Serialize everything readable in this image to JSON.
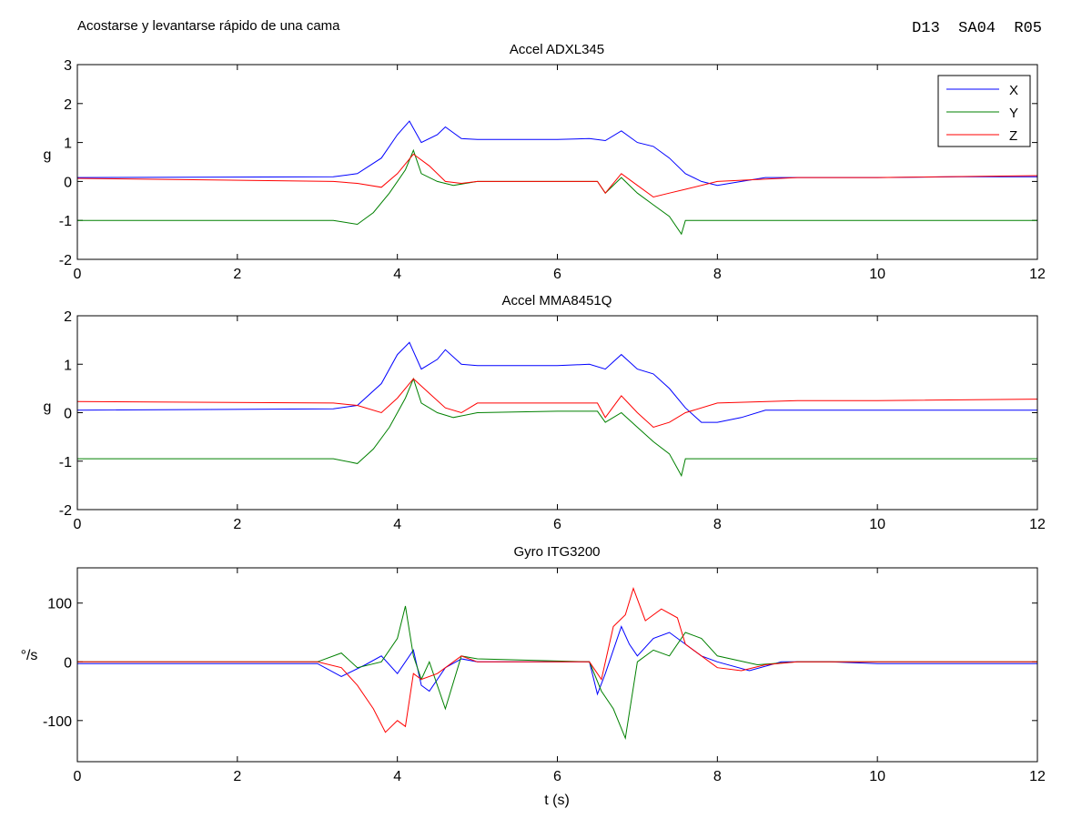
{
  "figure": {
    "title": "Acostarse y levantarse rápido de una cama",
    "code": "D13  SA04  R05"
  },
  "chart_data": [
    {
      "type": "line",
      "title": "Accel ADXL345",
      "xlabel": "",
      "ylabel": "g",
      "xlim": [
        0,
        12
      ],
      "ylim": [
        -2,
        3
      ],
      "xticks": [
        0,
        2,
        4,
        6,
        8,
        10,
        12
      ],
      "yticks": [
        -2,
        -1,
        0,
        1,
        2,
        3
      ],
      "legend": {
        "placement": "top-right",
        "entries": [
          "X",
          "Y",
          "Z"
        ]
      },
      "series": [
        {
          "name": "X",
          "color": "#0000ff",
          "x": [
            0,
            3.2,
            3.5,
            3.8,
            4.0,
            4.15,
            4.3,
            4.5,
            4.6,
            4.8,
            5,
            6,
            6.4,
            6.6,
            6.8,
            7.0,
            7.2,
            7.4,
            7.6,
            7.8,
            8.0,
            8.3,
            8.6,
            9,
            10,
            11,
            12
          ],
          "y": [
            0.1,
            0.12,
            0.2,
            0.6,
            1.2,
            1.55,
            1.0,
            1.2,
            1.4,
            1.1,
            1.08,
            1.08,
            1.1,
            1.05,
            1.3,
            1.0,
            0.9,
            0.6,
            0.2,
            0.0,
            -0.1,
            0.0,
            0.1,
            0.1,
            0.1,
            0.12,
            0.12
          ]
        },
        {
          "name": "Y",
          "color": "#008000",
          "x": [
            0,
            3.2,
            3.5,
            3.7,
            3.9,
            4.1,
            4.2,
            4.3,
            4.5,
            4.7,
            5,
            6,
            6.5,
            6.6,
            6.8,
            7.0,
            7.2,
            7.4,
            7.55,
            7.6,
            7.8,
            8,
            10,
            12
          ],
          "y": [
            -1.0,
            -1.0,
            -1.1,
            -0.8,
            -0.3,
            0.3,
            0.8,
            0.2,
            0.0,
            -0.1,
            0.0,
            0.0,
            0.0,
            -0.3,
            0.1,
            -0.3,
            -0.6,
            -0.9,
            -1.35,
            -1.0,
            -1.0,
            -1.0,
            -1.0,
            -1.0
          ]
        },
        {
          "name": "Z",
          "color": "#ff0000",
          "x": [
            0,
            3.2,
            3.5,
            3.8,
            4.0,
            4.2,
            4.4,
            4.6,
            4.8,
            5,
            6,
            6.5,
            6.6,
            6.8,
            7.0,
            7.2,
            7.4,
            7.6,
            8,
            9,
            10,
            12
          ],
          "y": [
            0.08,
            0.0,
            -0.05,
            -0.15,
            0.2,
            0.7,
            0.4,
            0.0,
            -0.05,
            0.0,
            0.0,
            0.0,
            -0.3,
            0.2,
            -0.1,
            -0.4,
            -0.3,
            -0.2,
            0.0,
            0.1,
            0.1,
            0.15
          ]
        }
      ]
    },
    {
      "type": "line",
      "title": "Accel MMA8451Q",
      "xlabel": "",
      "ylabel": "g",
      "xlim": [
        0,
        12
      ],
      "ylim": [
        -2,
        2
      ],
      "xticks": [
        0,
        2,
        4,
        6,
        8,
        10,
        12
      ],
      "yticks": [
        -2,
        -1,
        0,
        1,
        2
      ],
      "series": [
        {
          "name": "X",
          "color": "#0000ff",
          "x": [
            0,
            3.2,
            3.5,
            3.8,
            4.0,
            4.15,
            4.3,
            4.5,
            4.6,
            4.8,
            5,
            6,
            6.4,
            6.6,
            6.8,
            7.0,
            7.2,
            7.4,
            7.6,
            7.8,
            8.0,
            8.3,
            8.6,
            9,
            10,
            11,
            12
          ],
          "y": [
            0.05,
            0.08,
            0.15,
            0.6,
            1.2,
            1.45,
            0.9,
            1.1,
            1.3,
            1.0,
            0.97,
            0.97,
            1.0,
            0.9,
            1.2,
            0.9,
            0.8,
            0.5,
            0.1,
            -0.2,
            -0.2,
            -0.1,
            0.05,
            0.05,
            0.05,
            0.05,
            0.05
          ]
        },
        {
          "name": "Y",
          "color": "#008000",
          "x": [
            0,
            3.2,
            3.5,
            3.7,
            3.9,
            4.1,
            4.2,
            4.3,
            4.5,
            4.7,
            5,
            6,
            6.5,
            6.6,
            6.8,
            7.0,
            7.2,
            7.4,
            7.55,
            7.6,
            7.8,
            8,
            10,
            12
          ],
          "y": [
            -0.95,
            -0.95,
            -1.05,
            -0.75,
            -0.3,
            0.3,
            0.7,
            0.2,
            0.0,
            -0.1,
            0.0,
            0.03,
            0.03,
            -0.2,
            0.0,
            -0.3,
            -0.6,
            -0.85,
            -1.3,
            -0.95,
            -0.95,
            -0.95,
            -0.95,
            -0.95
          ]
        },
        {
          "name": "Z",
          "color": "#ff0000",
          "x": [
            0,
            3.2,
            3.5,
            3.8,
            4.0,
            4.2,
            4.4,
            4.6,
            4.8,
            5,
            6,
            6.5,
            6.6,
            6.8,
            7.0,
            7.2,
            7.4,
            7.6,
            8,
            9,
            10,
            12
          ],
          "y": [
            0.23,
            0.2,
            0.15,
            0.0,
            0.3,
            0.7,
            0.4,
            0.1,
            0.0,
            0.2,
            0.2,
            0.2,
            -0.1,
            0.35,
            0.0,
            -0.3,
            -0.2,
            0.0,
            0.2,
            0.25,
            0.25,
            0.28
          ]
        }
      ]
    },
    {
      "type": "line",
      "title": "Gyro ITG3200",
      "xlabel": "t (s)",
      "ylabel": "°/s",
      "xlim": [
        0,
        12
      ],
      "ylim": [
        -170,
        160
      ],
      "xticks": [
        0,
        2,
        4,
        6,
        8,
        10,
        12
      ],
      "yticks": [
        -100,
        0,
        100
      ],
      "series": [
        {
          "name": "X",
          "color": "#0000ff",
          "x": [
            0,
            3.0,
            3.3,
            3.6,
            3.8,
            4.0,
            4.2,
            4.3,
            4.4,
            4.6,
            4.8,
            5.0,
            6.4,
            6.5,
            6.6,
            6.8,
            6.9,
            7.0,
            7.2,
            7.4,
            7.6,
            7.8,
            8,
            8.4,
            8.8,
            9.4,
            10,
            12
          ],
          "y": [
            -3,
            -3,
            -25,
            -5,
            10,
            -20,
            20,
            -40,
            -50,
            -10,
            5,
            0,
            0,
            -55,
            -20,
            60,
            30,
            10,
            40,
            50,
            30,
            10,
            0,
            -15,
            0,
            0,
            -3,
            -3
          ]
        },
        {
          "name": "Y",
          "color": "#008000",
          "x": [
            0,
            3.0,
            3.3,
            3.5,
            3.8,
            4.0,
            4.1,
            4.2,
            4.3,
            4.4,
            4.6,
            4.8,
            5.0,
            6.4,
            6.55,
            6.7,
            6.85,
            7.0,
            7.2,
            7.4,
            7.6,
            7.8,
            8,
            8.5,
            9,
            10,
            12
          ],
          "y": [
            0,
            0,
            15,
            -10,
            0,
            40,
            95,
            10,
            -30,
            0,
            -80,
            10,
            5,
            0,
            -50,
            -80,
            -130,
            0,
            20,
            10,
            50,
            40,
            10,
            -5,
            0,
            0,
            0
          ]
        },
        {
          "name": "Z",
          "color": "#ff0000",
          "x": [
            0,
            3.0,
            3.3,
            3.5,
            3.7,
            3.85,
            4.0,
            4.1,
            4.2,
            4.3,
            4.5,
            4.8,
            5,
            6.4,
            6.55,
            6.7,
            6.85,
            6.95,
            7.1,
            7.3,
            7.5,
            7.6,
            7.8,
            8,
            8.3,
            8.6,
            9,
            10,
            12
          ],
          "y": [
            0,
            0,
            -10,
            -40,
            -80,
            -120,
            -100,
            -110,
            -20,
            -30,
            -20,
            10,
            0,
            0,
            -30,
            60,
            80,
            125,
            70,
            90,
            75,
            30,
            10,
            -10,
            -15,
            -5,
            0,
            0,
            0
          ]
        }
      ]
    }
  ]
}
